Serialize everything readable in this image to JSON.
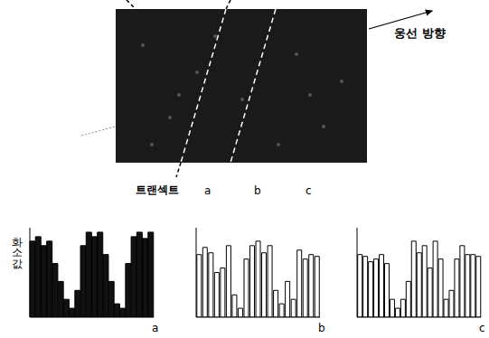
{
  "image": {
    "direction_label": "웅선 방향",
    "transect_label": "트랜섹트",
    "transects": [
      "a",
      "b",
      "c"
    ]
  },
  "chart_data": [
    {
      "type": "bar",
      "xlabel": "a",
      "ylabel": "화소값",
      "categories": [
        null,
        null,
        null,
        null,
        null,
        null,
        null,
        null,
        null,
        null,
        null,
        null,
        null,
        null,
        null,
        null,
        null,
        null,
        null,
        null,
        null,
        null
      ],
      "values": [
        85,
        90,
        80,
        85,
        60,
        40,
        20,
        10,
        30,
        80,
        95,
        90,
        95,
        70,
        40,
        15,
        10,
        60,
        90,
        95,
        88,
        95
      ],
      "color": "#111111",
      "ylim": [
        0,
        100
      ],
      "tick_labels": false
    },
    {
      "type": "bar",
      "xlabel": "b",
      "categories": [
        null,
        null,
        null,
        null,
        null,
        null,
        null,
        null,
        null,
        null,
        null,
        null,
        null,
        null,
        null,
        null,
        null,
        null,
        null,
        null,
        null
      ],
      "values": [
        70,
        78,
        72,
        50,
        55,
        80,
        25,
        10,
        65,
        80,
        85,
        72,
        80,
        30,
        15,
        40,
        20,
        75,
        65,
        70,
        68
      ],
      "color": "#ffffff",
      "ylim": [
        0,
        100
      ],
      "tick_labels": false
    },
    {
      "type": "bar",
      "xlabel": "c",
      "categories": [
        null,
        null,
        null,
        null,
        null,
        null,
        null,
        null,
        null,
        null,
        null,
        null,
        null,
        null,
        null,
        null,
        null,
        null,
        null,
        null,
        null,
        null,
        null
      ],
      "values": [
        70,
        68,
        62,
        65,
        70,
        60,
        20,
        10,
        20,
        40,
        85,
        72,
        80,
        55,
        85,
        65,
        20,
        30,
        65,
        80,
        70,
        70,
        68
      ],
      "color": "#ffffff",
      "ylim": [
        0,
        100
      ],
      "tick_labels": false
    }
  ]
}
